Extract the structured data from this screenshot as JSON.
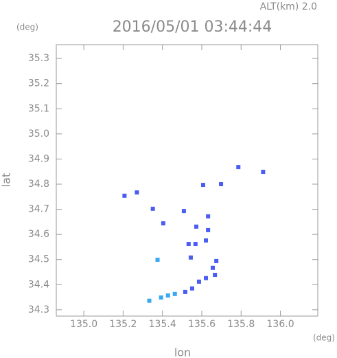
{
  "chart_data": {
    "type": "scatter",
    "title": "2016/05/01 03:44:44",
    "annotation": "ALT(km) 2.0",
    "x_label": "lon",
    "x_unit": "(deg)",
    "y_label": "lat",
    "y_unit": "(deg)",
    "xlim": [
      134.86,
      136.19
    ],
    "ylim": [
      34.275,
      35.355
    ],
    "xticks": [
      {
        "value": 135.0,
        "label": "135.0"
      },
      135.2,
      135.4,
      135.6,
      135.8,
      {
        "value": 136.0,
        "label": "136.0"
      }
    ],
    "yticks": [
      34.3,
      34.4,
      34.5,
      34.6,
      34.7,
      34.8,
      34.9,
      {
        "value": 35.0,
        "label": "35.0"
      },
      35.1,
      35.2,
      35.3
    ],
    "series": [
      {
        "color": "#4b5cf2",
        "x": [
          135.207,
          135.27,
          135.351,
          135.404,
          135.509,
          135.607,
          135.632,
          135.572,
          135.632,
          135.533,
          135.568,
          135.621,
          135.544,
          135.912,
          135.786,
          135.698,
          135.656,
          135.621,
          135.586,
          135.551,
          135.516,
          135.667,
          135.674
        ],
        "values": [
          34.754,
          34.767,
          34.702,
          34.644,
          34.693,
          34.797,
          34.672,
          34.631,
          34.617,
          34.562,
          34.562,
          34.576,
          34.508,
          34.849,
          34.868,
          34.8,
          34.467,
          34.426,
          34.412,
          34.385,
          34.371,
          34.439,
          34.494
        ]
      },
      {
        "color": "#3aa8f0",
        "x": [
          135.375,
          135.463,
          135.428,
          135.393,
          135.333
        ],
        "values": [
          34.499,
          34.363,
          34.357,
          34.349,
          34.336
        ]
      }
    ]
  }
}
